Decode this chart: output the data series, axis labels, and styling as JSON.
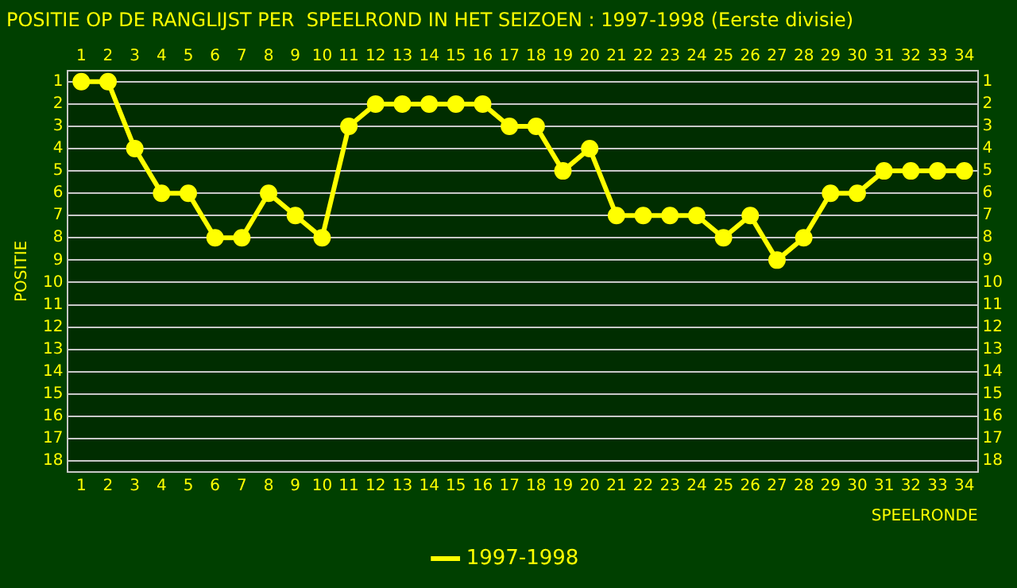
{
  "chart_data": {
    "type": "line",
    "title": "POSITIE OP DE RANGLIJST PER  SPEELROND IN HET SEIZOEN : 1997-1998 (Eerste divisie)",
    "xlabel": "SPEELRONDE",
    "ylabel": "POSITIE",
    "x": [
      1,
      2,
      3,
      4,
      5,
      6,
      7,
      8,
      9,
      10,
      11,
      12,
      13,
      14,
      15,
      16,
      17,
      18,
      19,
      20,
      21,
      22,
      23,
      24,
      25,
      26,
      27,
      28,
      29,
      30,
      31,
      32,
      33,
      34
    ],
    "series": [
      {
        "name": "1997-1998",
        "color": "#ffff00",
        "values": [
          1,
          1,
          4,
          6,
          6,
          8,
          8,
          6,
          7,
          8,
          3,
          2,
          2,
          2,
          2,
          2,
          3,
          3,
          5,
          4,
          7,
          7,
          7,
          7,
          8,
          7,
          9,
          8,
          6,
          6,
          5,
          5,
          5,
          5
        ]
      }
    ],
    "xlim": [
      0.5,
      34.5
    ],
    "xticks": [
      1,
      2,
      3,
      4,
      5,
      6,
      7,
      8,
      9,
      10,
      11,
      12,
      13,
      14,
      15,
      16,
      17,
      18,
      19,
      20,
      21,
      22,
      23,
      24,
      25,
      26,
      27,
      28,
      29,
      30,
      31,
      32,
      33,
      34
    ],
    "x2lim": [
      0.5,
      34.5
    ],
    "x2ticks": [
      1,
      2,
      3,
      4,
      5,
      6,
      7,
      8,
      9,
      10,
      11,
      12,
      13,
      14,
      15,
      16,
      17,
      18,
      19,
      20,
      21,
      22,
      23,
      24,
      25,
      26,
      27,
      28,
      29,
      30,
      31,
      32,
      33,
      34
    ],
    "ylim": [
      18.5,
      0.5
    ],
    "yticks": [
      1,
      2,
      3,
      4,
      5,
      6,
      7,
      8,
      9,
      10,
      11,
      12,
      13,
      14,
      15,
      16,
      17,
      18
    ],
    "y2lim": [
      18.5,
      0.5
    ],
    "y2ticks": [
      1,
      2,
      3,
      4,
      5,
      6,
      7,
      8,
      9,
      10,
      11,
      12,
      13,
      14,
      15,
      16,
      17,
      18
    ],
    "grid": "y",
    "legend": "bottom",
    "marker": "circle",
    "line_style": "solid"
  }
}
